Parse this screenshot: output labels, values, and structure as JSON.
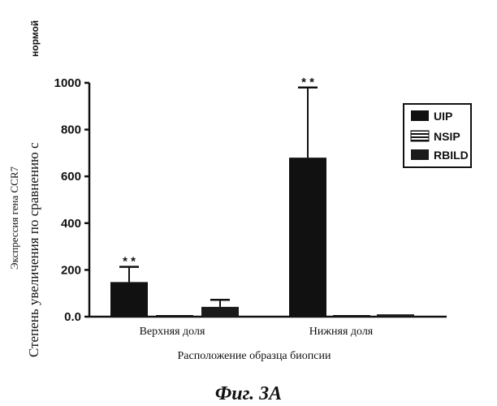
{
  "chart_data": {
    "type": "bar",
    "ylabel_line1": "Экспрессия гена CCR7",
    "ylabel_line2": "Степень увеличения по сравнению с",
    "ylabel_line3": "нормой",
    "xlabel": "Расположение образца биопсии",
    "categories": [
      "Верхняя доля",
      "Нижняя доля"
    ],
    "series": [
      {
        "name": "UIP",
        "values": [
          148,
          680
        ],
        "errors": [
          65,
          300
        ],
        "color": "#111111",
        "pattern": "solid"
      },
      {
        "name": "NSIP",
        "values": [
          5,
          8
        ],
        "errors": [
          0,
          0
        ],
        "color": "#222222",
        "pattern": "stripes"
      },
      {
        "name": "RBILD",
        "values": [
          42,
          10
        ],
        "errors": [
          30,
          0
        ],
        "color": "#1a1a1a",
        "pattern": "solid"
      }
    ],
    "yticks": [
      "0.0",
      "200",
      "400",
      "600",
      "800",
      "1000"
    ],
    "ylim": [
      0,
      1000
    ],
    "significance": [
      "* *",
      "* *"
    ],
    "legend_position": "right",
    "caption": "Фиг. 3А"
  }
}
